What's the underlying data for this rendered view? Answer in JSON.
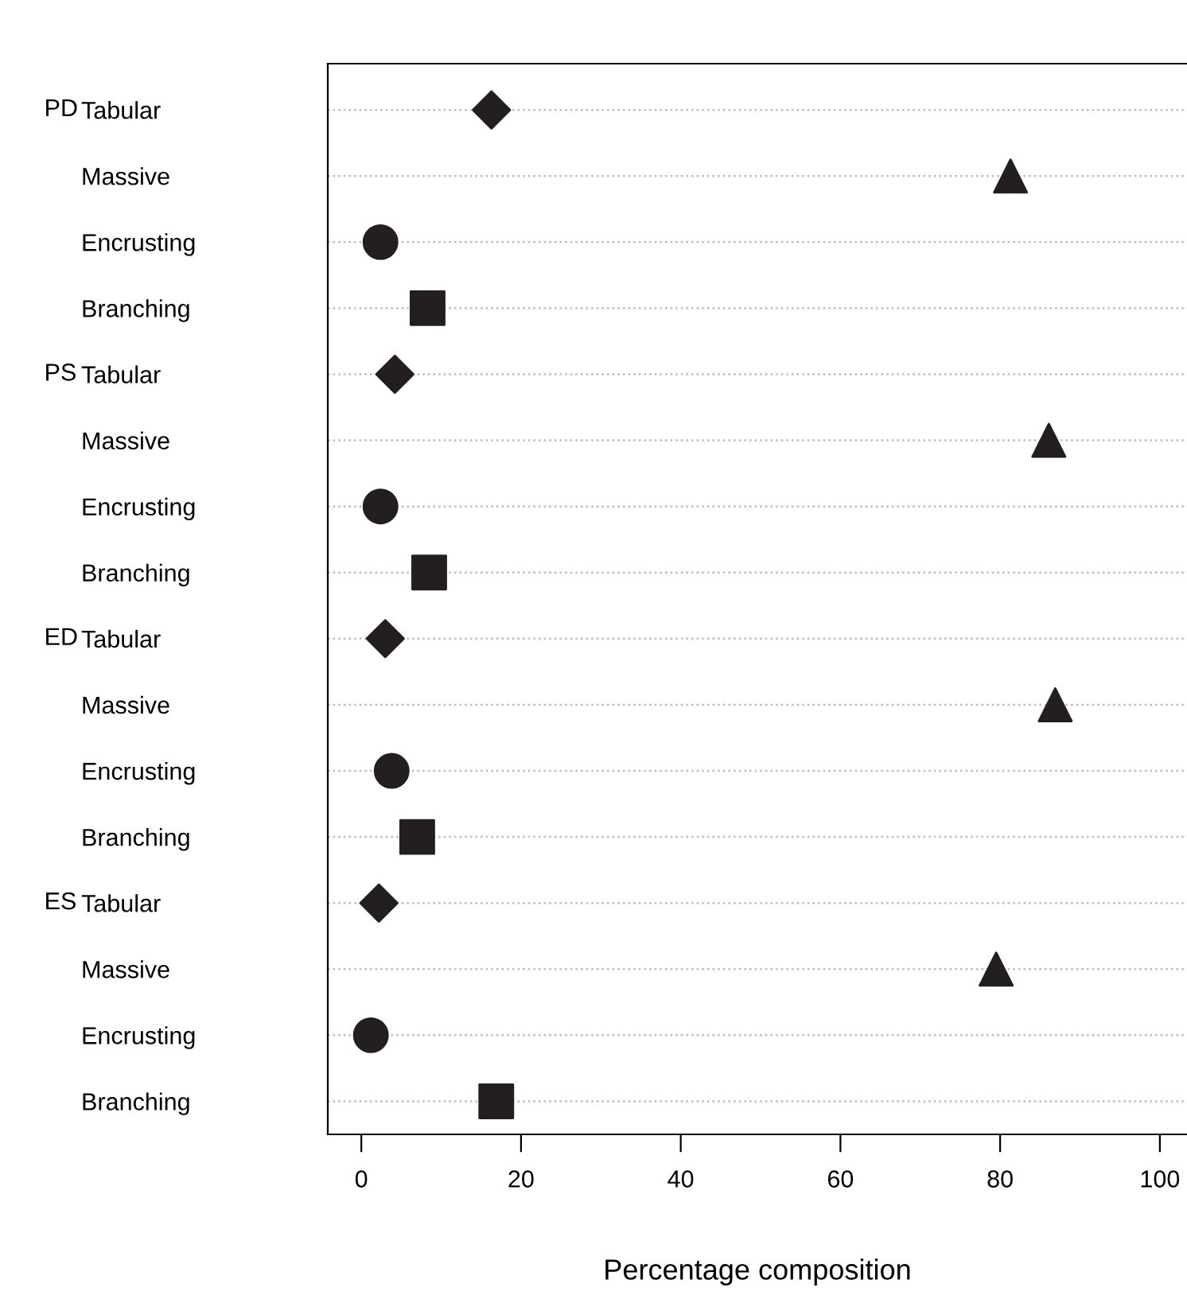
{
  "chart_data": {
    "type": "scatter",
    "xlabel": "Percentage composition",
    "categories": [
      "Tabular",
      "Massive",
      "Encrusting",
      "Branching",
      "Tabular",
      "Massive",
      "Encrusting",
      "Branching",
      "Tabular",
      "Massive",
      "Encrusting",
      "Branching",
      "Tabular",
      "Massive",
      "Encrusting",
      "Branching"
    ],
    "annotations": [
      "PD",
      "PS",
      "ED",
      "ES"
    ],
    "orientation": "horizontal",
    "series": [
      {
        "color": "#231f20",
        "marker": "diamond",
        "values": [
          16.3,
          null,
          null,
          null,
          4.2,
          null,
          null,
          null,
          3.0,
          null,
          null,
          null,
          2.2,
          null,
          null,
          null
        ]
      },
      {
        "color": "#231f20",
        "marker": "triangle",
        "values": [
          null,
          81.3,
          null,
          null,
          null,
          86.1,
          null,
          null,
          null,
          86.9,
          null,
          null,
          null,
          79.5,
          null,
          null
        ]
      },
      {
        "color": "#231f20",
        "marker": "circle",
        "values": [
          null,
          null,
          2.4,
          null,
          null,
          null,
          2.4,
          null,
          null,
          null,
          3.8,
          null,
          null,
          null,
          1.2,
          null
        ]
      },
      {
        "color": "#231f20",
        "marker": "square",
        "values": [
          null,
          null,
          null,
          8.3,
          null,
          null,
          null,
          8.5,
          null,
          null,
          null,
          7.0,
          null,
          null,
          null,
          16.9
        ]
      }
    ],
    "xlim": [
      -4.2,
      103.4
    ],
    "xticks": [
      0,
      20,
      40,
      60,
      80,
      100
    ],
    "grid": "y",
    "line_style": "dotted"
  }
}
